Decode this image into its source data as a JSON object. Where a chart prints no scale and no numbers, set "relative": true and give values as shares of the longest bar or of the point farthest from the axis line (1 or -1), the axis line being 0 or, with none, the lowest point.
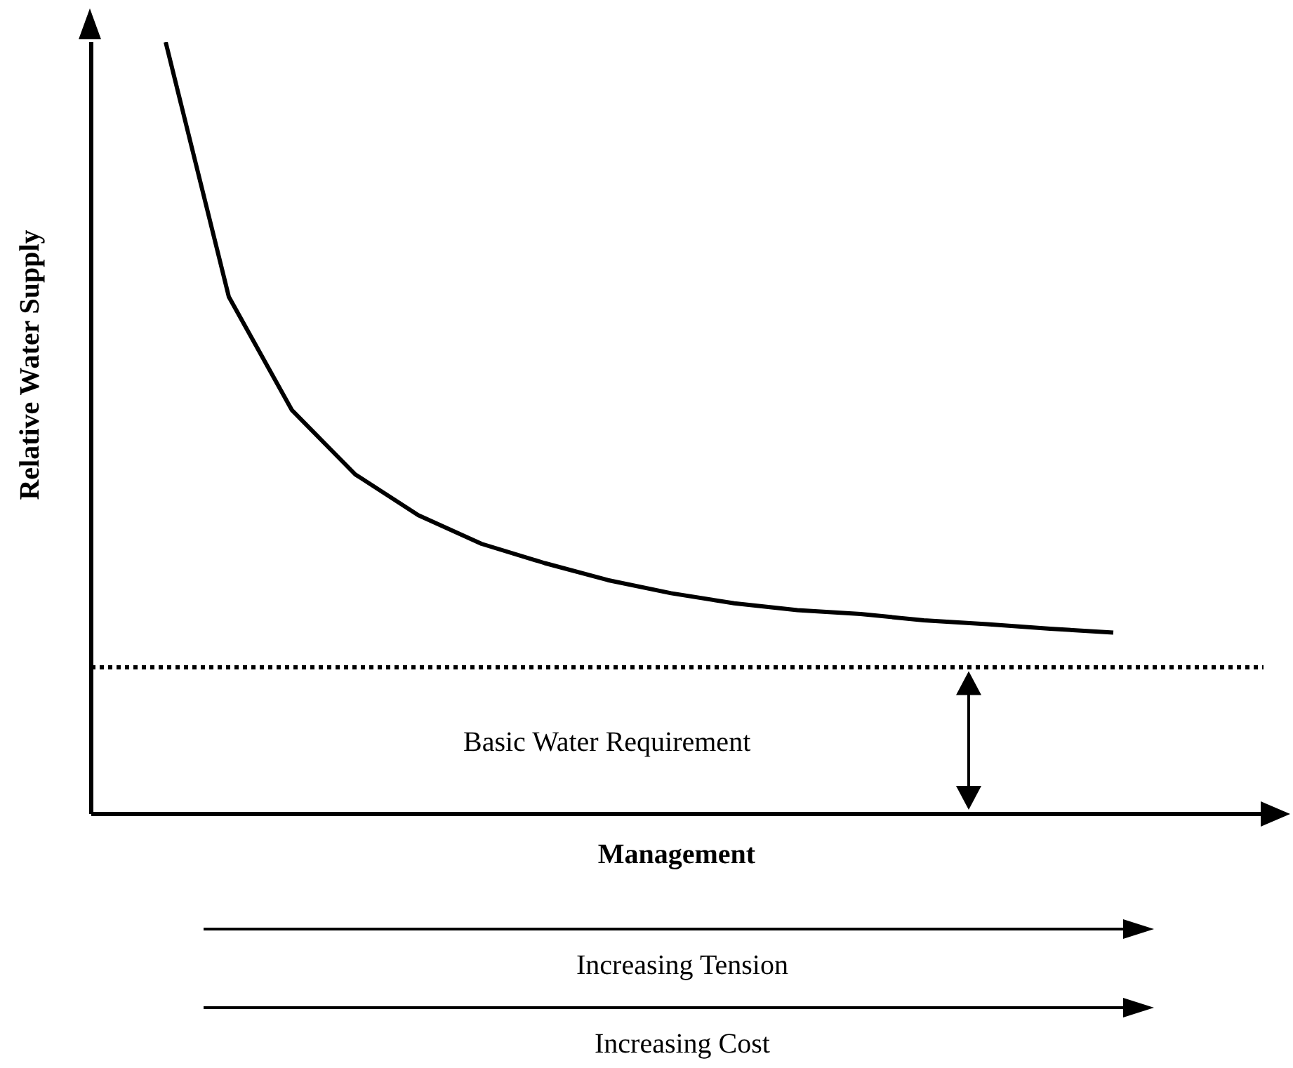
{
  "chart_data": {
    "type": "line",
    "xlabel": "Management",
    "ylabel": "Relative Water Supply",
    "relative": true,
    "marker": "none",
    "categories": [
      null,
      null,
      null,
      null,
      null,
      null,
      null,
      null,
      null,
      null,
      null,
      null,
      null,
      null,
      null,
      null
    ],
    "series": [
      {
        "color": "#000000",
        "values": [
          1.0,
          0.67,
          0.523,
          0.44,
          0.387,
          0.35,
          0.325,
          0.303,
          0.286,
          0.273,
          0.264,
          0.259,
          0.251,
          0.246,
          0.24,
          0.235
        ]
      }
    ],
    "ref_lines": [
      {
        "axis": "y",
        "value": 0.19,
        "label": "Basic Water Requirement",
        "color": "#000000",
        "line_style": "dotted"
      }
    ],
    "annotations": [
      "Increasing Tension",
      "Increasing Cost"
    ]
  }
}
